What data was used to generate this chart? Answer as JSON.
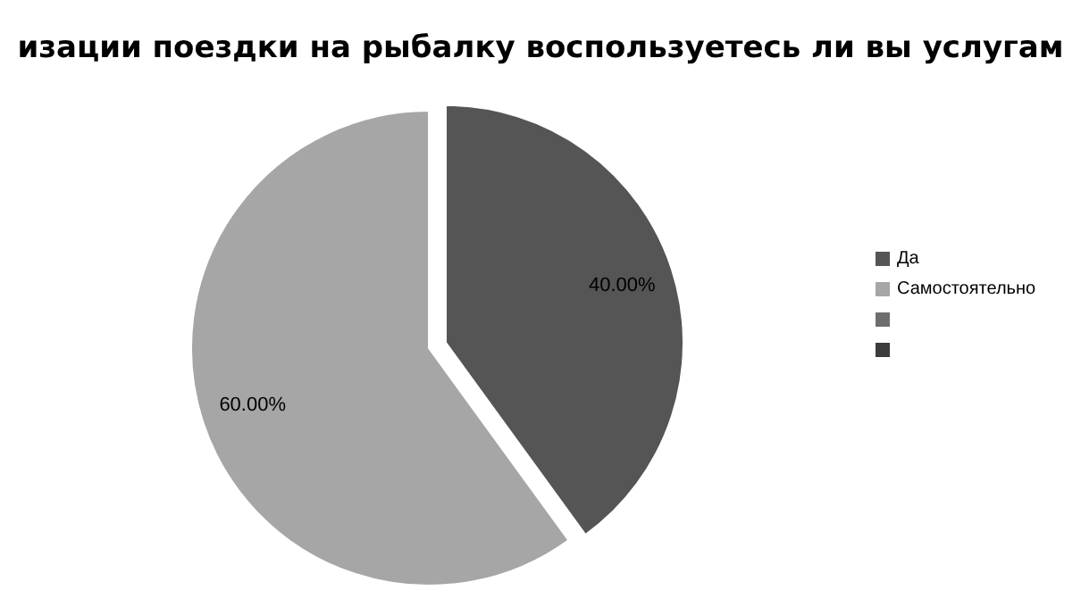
{
  "chart_data": {
    "type": "pie",
    "title": "изации поездки на рыбалку воспользуетесь ли вы услугам",
    "categories": [
      "Да",
      "Самостоятельно",
      null,
      null
    ],
    "values": [
      40,
      60,
      0,
      0
    ],
    "value_labels": [
      "40.00%",
      "60.00%",
      null,
      null
    ],
    "colors": [
      "#555555",
      "#a6a6a6",
      "#6e6e6e",
      "#3c3c3c"
    ],
    "legend": "right"
  }
}
